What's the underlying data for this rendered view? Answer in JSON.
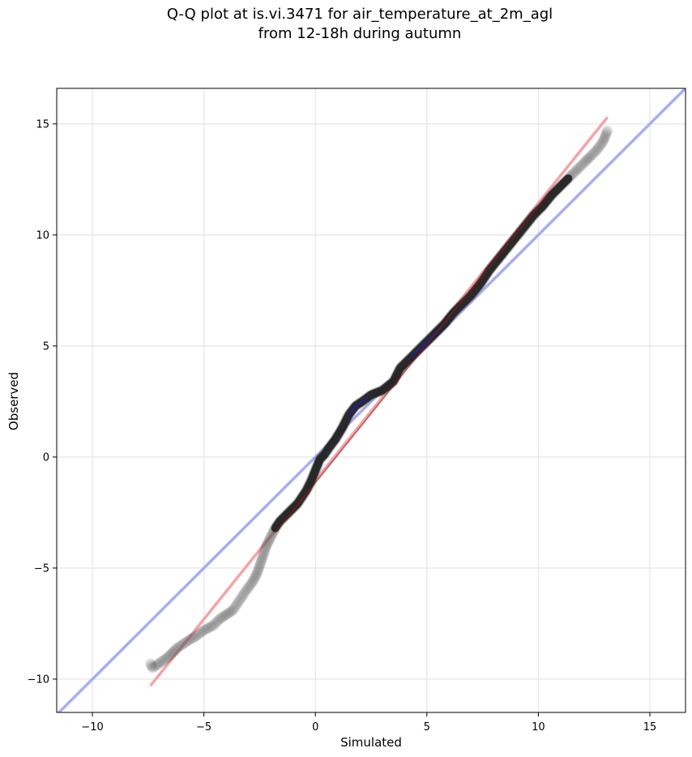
{
  "chart_data": {
    "type": "scatter",
    "title_lines": [
      "Q-Q plot at is.vi.3471 for air_temperature_at_2m_agl",
      "from 12-18h during autumn"
    ],
    "xlabel": "Simulated",
    "ylabel": "Observed",
    "xlim": [
      -11.6,
      16.6
    ],
    "ylim": [
      -11.5,
      16.6
    ],
    "xticks": [
      -10,
      -5,
      0,
      5,
      10,
      15
    ],
    "yticks": [
      -10,
      -5,
      0,
      5,
      10,
      15
    ],
    "xtick_labels": [
      "−10",
      "−5",
      "0",
      "5",
      "10",
      "15"
    ],
    "ytick_labels": [
      "−10",
      "−5",
      "0",
      "5",
      "10",
      "15"
    ],
    "grid": true,
    "colors": {
      "points": "#555555",
      "identity_line": "#a9acf5",
      "fit_line": "#f5a3a8",
      "core_dark_line": "#1a1a1a",
      "blue_segment": "#2020a0",
      "red_segment": "#8b1a1a"
    },
    "quantiles": {
      "x": [
        -7.4,
        -7.3,
        -6.6,
        -6.4,
        -6.2,
        -5.6,
        -5.4,
        -5.0,
        -4.6,
        -4.3,
        -4.0,
        -3.7,
        -3.5,
        -3.3,
        -3.1,
        -2.8,
        -2.6,
        -2.5,
        -2.4,
        -2.3,
        -2.2,
        -2.0,
        -1.8,
        -1.6,
        -1.4,
        -1.2,
        -1.0,
        -0.8,
        -0.6,
        -0.4,
        -0.2,
        0.0,
        0.2,
        0.4,
        0.6,
        0.9,
        1.2,
        1.5,
        1.8,
        2.1,
        2.5,
        3.0,
        3.5,
        3.8,
        4.0,
        4.3,
        4.6,
        5.0,
        5.4,
        5.8,
        6.2,
        6.6,
        7.0,
        7.4,
        7.8,
        8.2,
        8.6,
        9.0,
        9.4,
        9.8,
        10.2,
        10.6,
        11.0,
        11.4,
        11.8,
        12.1,
        12.3,
        12.6,
        12.9,
        13.1
      ],
      "y": [
        -9.3,
        -9.5,
        -9.0,
        -8.8,
        -8.6,
        -8.2,
        -8.1,
        -7.8,
        -7.6,
        -7.3,
        -7.1,
        -6.9,
        -6.6,
        -6.3,
        -6.0,
        -5.6,
        -5.2,
        -4.9,
        -4.6,
        -4.3,
        -4.0,
        -3.6,
        -3.2,
        -2.9,
        -2.7,
        -2.5,
        -2.3,
        -2.1,
        -1.8,
        -1.5,
        -1.1,
        -0.6,
        -0.1,
        0.1,
        0.4,
        0.8,
        1.3,
        1.9,
        2.3,
        2.5,
        2.8,
        3.0,
        3.4,
        4.0,
        4.2,
        4.5,
        4.8,
        5.2,
        5.6,
        6.0,
        6.5,
        6.9,
        7.3,
        7.8,
        8.4,
        8.9,
        9.4,
        9.9,
        10.4,
        10.9,
        11.3,
        11.8,
        12.2,
        12.6,
        13.0,
        13.3,
        13.5,
        13.8,
        14.2,
        14.7
      ]
    },
    "identity_line": {
      "x": [
        -11.6,
        16.6
      ],
      "y": [
        -11.6,
        16.6
      ]
    },
    "fit_line": {
      "x": [
        -7.4,
        13.1
      ],
      "y": [
        -10.3,
        15.3
      ]
    }
  }
}
